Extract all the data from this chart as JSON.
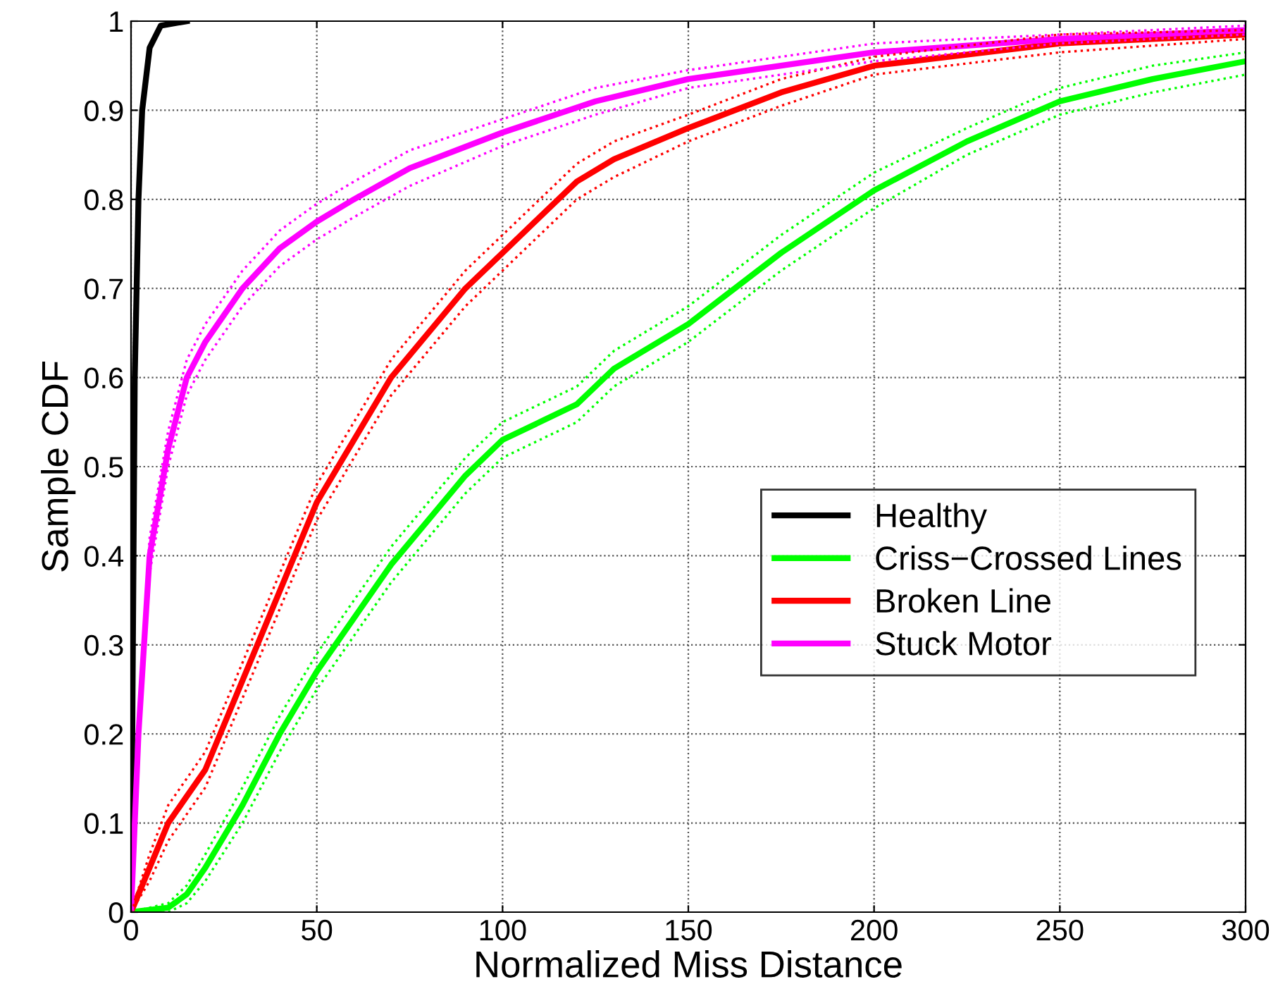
{
  "chart_data": {
    "type": "line",
    "xlabel": "Normalized Miss Distance",
    "ylabel": "Sample CDF",
    "xlim": [
      0,
      300
    ],
    "ylim": [
      0,
      1
    ],
    "xticks": [
      0,
      50,
      100,
      150,
      200,
      250,
      300
    ],
    "yticks": [
      0,
      0.1,
      0.2,
      0.3,
      0.4,
      0.5,
      0.6,
      0.7,
      0.8,
      0.9,
      1
    ],
    "grid": true,
    "legend": "right",
    "line_style": "solid",
    "marker": "none",
    "series": [
      {
        "name": "Healthy",
        "color": "#000000",
        "x": [
          0,
          0.5,
          1,
          2,
          3,
          5,
          8,
          15
        ],
        "values": [
          0,
          0.3,
          0.6,
          0.8,
          0.9,
          0.97,
          0.995,
          1
        ]
      },
      {
        "name": "Criss−Crossed Lines",
        "color": "#00ff00",
        "x": [
          0,
          10,
          15,
          20,
          30,
          40,
          50,
          60,
          70,
          80,
          90,
          100,
          110,
          120,
          130,
          150,
          175,
          200,
          225,
          250,
          275,
          300
        ],
        "values": [
          0,
          0.005,
          0.02,
          0.05,
          0.12,
          0.2,
          0.27,
          0.33,
          0.39,
          0.44,
          0.49,
          0.53,
          0.55,
          0.57,
          0.61,
          0.66,
          0.74,
          0.81,
          0.865,
          0.91,
          0.935,
          0.955
        ]
      },
      {
        "name": "Broken Line",
        "color": "#ff0000",
        "x": [
          0,
          5,
          10,
          20,
          30,
          40,
          50,
          60,
          70,
          80,
          90,
          100,
          110,
          120,
          130,
          150,
          175,
          200,
          250,
          300
        ],
        "values": [
          0,
          0.05,
          0.1,
          0.16,
          0.26,
          0.36,
          0.46,
          0.53,
          0.6,
          0.65,
          0.7,
          0.74,
          0.78,
          0.82,
          0.845,
          0.88,
          0.92,
          0.95,
          0.975,
          0.985
        ]
      },
      {
        "name": "Stuck Motor",
        "color": "#ff00ff",
        "x": [
          0,
          2,
          5,
          10,
          15,
          20,
          25,
          30,
          40,
          50,
          60,
          75,
          100,
          125,
          150,
          200,
          250,
          300
        ],
        "values": [
          0,
          0.2,
          0.4,
          0.52,
          0.6,
          0.64,
          0.67,
          0.7,
          0.745,
          0.775,
          0.8,
          0.835,
          0.875,
          0.91,
          0.935,
          0.965,
          0.98,
          0.99
        ]
      },
      {
        "color": "#00ff00",
        "line_style": "dotted",
        "x": [
          0,
          10,
          15,
          20,
          30,
          40,
          50,
          60,
          70,
          80,
          90,
          100,
          110,
          120,
          130,
          150,
          175,
          200,
          225,
          250,
          275,
          300
        ],
        "values": [
          0,
          0,
          0.01,
          0.035,
          0.1,
          0.18,
          0.25,
          0.31,
          0.37,
          0.42,
          0.47,
          0.51,
          0.53,
          0.55,
          0.59,
          0.64,
          0.72,
          0.79,
          0.85,
          0.895,
          0.92,
          0.94
        ]
      },
      {
        "color": "#00ff00",
        "line_style": "dotted",
        "x": [
          0,
          10,
          15,
          20,
          30,
          40,
          50,
          60,
          70,
          80,
          90,
          100,
          110,
          120,
          130,
          150,
          175,
          200,
          225,
          250,
          275,
          300
        ],
        "values": [
          0,
          0.01,
          0.03,
          0.065,
          0.14,
          0.22,
          0.29,
          0.35,
          0.41,
          0.46,
          0.51,
          0.55,
          0.57,
          0.59,
          0.63,
          0.68,
          0.76,
          0.83,
          0.88,
          0.925,
          0.95,
          0.965
        ]
      },
      {
        "color": "#ff0000",
        "line_style": "dotted",
        "x": [
          0,
          5,
          10,
          20,
          30,
          40,
          50,
          60,
          70,
          80,
          90,
          100,
          110,
          120,
          130,
          150,
          175,
          200,
          250,
          300
        ],
        "values": [
          0,
          0.035,
          0.08,
          0.14,
          0.24,
          0.34,
          0.44,
          0.51,
          0.58,
          0.63,
          0.68,
          0.72,
          0.76,
          0.8,
          0.825,
          0.865,
          0.905,
          0.94,
          0.965,
          0.98
        ]
      },
      {
        "color": "#ff0000",
        "line_style": "dotted",
        "x": [
          0,
          5,
          10,
          20,
          30,
          40,
          50,
          60,
          70,
          80,
          90,
          100,
          110,
          120,
          130,
          150,
          175,
          200,
          250,
          300
        ],
        "values": [
          0,
          0.065,
          0.12,
          0.18,
          0.28,
          0.38,
          0.48,
          0.55,
          0.62,
          0.67,
          0.72,
          0.76,
          0.8,
          0.84,
          0.865,
          0.895,
          0.935,
          0.96,
          0.985,
          0.99
        ]
      },
      {
        "color": "#ff00ff",
        "line_style": "dotted",
        "x": [
          0,
          2,
          5,
          10,
          15,
          20,
          25,
          30,
          40,
          50,
          60,
          75,
          100,
          125,
          150,
          200,
          250,
          300
        ],
        "values": [
          0,
          0.18,
          0.38,
          0.5,
          0.58,
          0.62,
          0.65,
          0.68,
          0.725,
          0.755,
          0.78,
          0.815,
          0.86,
          0.895,
          0.925,
          0.955,
          0.975,
          0.985
        ]
      },
      {
        "color": "#ff00ff",
        "line_style": "dotted",
        "x": [
          0,
          2,
          5,
          10,
          15,
          20,
          25,
          30,
          40,
          50,
          60,
          75,
          100,
          125,
          150,
          200,
          250,
          300
        ],
        "values": [
          0,
          0.22,
          0.42,
          0.54,
          0.62,
          0.66,
          0.69,
          0.72,
          0.765,
          0.795,
          0.82,
          0.855,
          0.89,
          0.925,
          0.945,
          0.975,
          0.985,
          0.995
        ]
      }
    ]
  }
}
